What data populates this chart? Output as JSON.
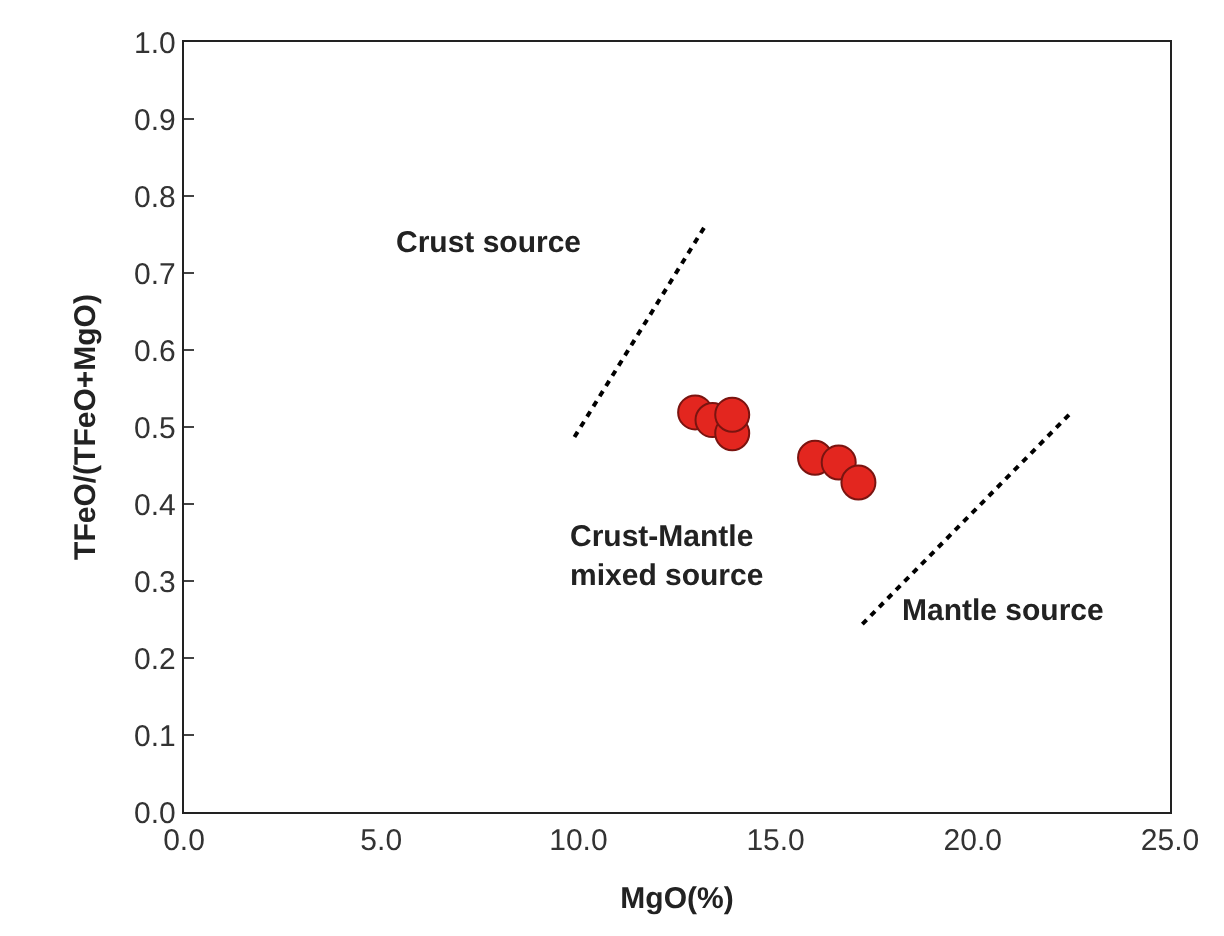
{
  "chart_data": {
    "type": "scatter",
    "xlabel": "MgO(%)",
    "ylabel": "TFeO/(TFeO+MgO)",
    "xlim": [
      0,
      25
    ],
    "ylim": [
      0,
      1
    ],
    "xticks": [
      {
        "value": 0,
        "label": "0.0"
      },
      {
        "value": 5,
        "label": "5.0"
      },
      {
        "value": 10,
        "label": "10.0"
      },
      {
        "value": 15,
        "label": "15.0"
      },
      {
        "value": 20,
        "label": "20.0"
      },
      {
        "value": 25,
        "label": "25.0"
      }
    ],
    "yticks": [
      {
        "value": 0,
        "label": "0.0"
      },
      0.1,
      0.2,
      0.3,
      0.4,
      0.5,
      0.6,
      0.7,
      0.8,
      0.9,
      {
        "value": 1,
        "label": "1.0"
      }
    ],
    "series": [
      {
        "marker": "circle",
        "color": "#e3261f",
        "x": [
          12.96,
          13.4,
          13.9,
          13.9,
          16.0,
          16.6,
          17.1
        ],
        "values": [
          0.519,
          0.509,
          0.492,
          0.516,
          0.46,
          0.454,
          0.428
        ]
      },
      {
        "type": "line",
        "marker": "none",
        "line_style": "dotted",
        "color": "#000000",
        "x": [
          9.9,
          13.2
        ],
        "values": [
          0.487,
          0.76
        ]
      },
      {
        "type": "line",
        "marker": "none",
        "line_style": "dotted",
        "color": "#000000",
        "x": [
          17.2,
          22.5
        ],
        "values": [
          0.244,
          0.519
        ]
      }
    ],
    "annotations": [
      "Crust source",
      "Crust-Mantle\nmixed source",
      "Mantle source"
    ]
  }
}
